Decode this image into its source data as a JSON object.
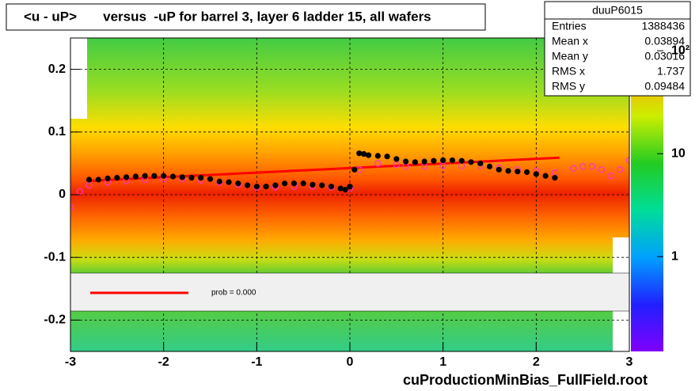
{
  "chart_data": {
    "type": "profile",
    "title": "<u - uP>       versus  -uP for barrel 3, layer 6 ladder 15, all wafers",
    "x_label": "cuProductionMinBias_FullField.root",
    "xlim": [
      -3,
      3
    ],
    "ylim": [
      -0.25,
      0.25
    ],
    "xticks": [
      -3,
      -2,
      -1,
      0,
      1,
      2,
      3
    ],
    "yticks": [
      -0.2,
      -0.1,
      0,
      0.1,
      0.2
    ],
    "grid": true,
    "z_axis": {
      "scale": "log",
      "lim": [
        0.12,
        133
      ],
      "ticks": [
        1,
        10,
        {
          "value": 100,
          "label": "10²"
        }
      ]
    },
    "series": [
      {
        "color": "#000000",
        "marker": "filled",
        "x": [
          -2.8,
          -2.7,
          -2.6,
          -2.5,
          -2.4,
          -2.3,
          -2.2,
          -2.1,
          -2.0,
          -1.9,
          -1.8,
          -1.7,
          -1.6,
          -1.5,
          -1.4,
          -1.3,
          -1.2,
          -1.1,
          -1.0,
          -0.9,
          -0.8,
          -0.7,
          -0.6,
          -0.5,
          -0.4,
          -0.3,
          -0.2,
          -0.1,
          -0.05,
          0.0,
          0.05,
          0.1,
          0.15,
          0.2,
          0.3,
          0.4,
          0.5,
          0.6,
          0.7,
          0.8,
          0.9,
          1.0,
          1.1,
          1.2,
          1.3,
          1.4,
          1.5,
          1.6,
          1.7,
          1.8,
          1.9,
          2.0,
          2.1,
          2.2
        ],
        "values": [
          0.024,
          0.024,
          0.026,
          0.027,
          0.028,
          0.029,
          0.03,
          0.03,
          0.03,
          0.029,
          0.028,
          0.027,
          0.027,
          0.025,
          0.021,
          0.02,
          0.018,
          0.015,
          0.013,
          0.013,
          0.015,
          0.018,
          0.018,
          0.018,
          0.016,
          0.015,
          0.013,
          0.01,
          0.008,
          0.013,
          0.04,
          0.066,
          0.065,
          0.063,
          0.062,
          0.061,
          0.057,
          0.053,
          0.052,
          0.053,
          0.054,
          0.055,
          0.055,
          0.054,
          0.052,
          0.05,
          0.045,
          0.04,
          0.038,
          0.037,
          0.036,
          0.033,
          0.03,
          0.027
        ]
      },
      {
        "color": "#ff33cc",
        "marker": "open",
        "x": [
          -3.0,
          -2.9,
          -2.8,
          -2.6,
          -2.4,
          -2.2,
          -2.0,
          -1.8,
          -1.6,
          -1.4,
          -1.2,
          -1.0,
          -0.8,
          -0.6,
          -0.4,
          -0.2,
          0.0,
          0.1,
          0.3,
          0.5,
          0.6,
          0.8,
          1.0,
          1.2,
          1.4,
          1.6,
          1.8,
          2.0,
          2.2,
          2.4,
          2.5,
          2.6,
          2.7,
          2.8,
          2.9,
          3.0
        ],
        "values": [
          -0.02,
          0.005,
          0.015,
          0.02,
          0.022,
          0.024,
          0.025,
          0.025,
          0.023,
          0.02,
          0.016,
          0.012,
          0.012,
          0.013,
          0.013,
          0.012,
          0.01,
          0.04,
          0.05,
          0.048,
          0.045,
          0.045,
          0.046,
          0.046,
          0.046,
          0.043,
          0.04,
          0.038,
          0.035,
          0.042,
          0.045,
          0.045,
          0.04,
          0.03,
          0.04,
          0.055
        ]
      }
    ],
    "fit": {
      "name": "prob = 0.000",
      "color": "#ff0000",
      "x": [
        -2.8,
        2.25
      ],
      "values": [
        0.022,
        0.059
      ]
    },
    "stats": {
      "title": "duuP6015",
      "rows": [
        [
          "Entries",
          1388436
        ],
        [
          "Mean x",
          0.03894
        ],
        [
          "Mean y",
          0.03016
        ],
        [
          "RMS x",
          1.737
        ],
        [
          "RMS y",
          0.09484
        ]
      ]
    }
  }
}
